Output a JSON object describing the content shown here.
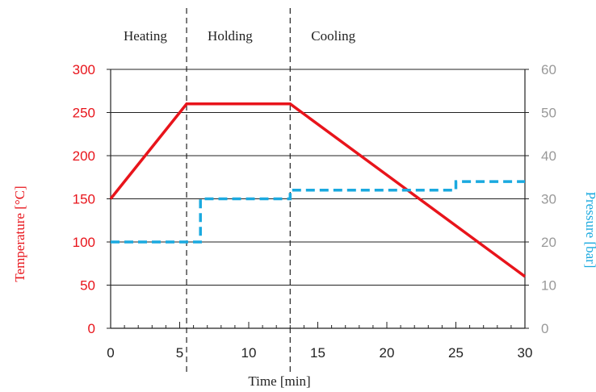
{
  "chart_data": {
    "type": "line",
    "xlabel": "Time [min]",
    "ylabel_left": "Temperature [°C]",
    "ylabel_right": "Pressure [bar]",
    "xlim": [
      0,
      30
    ],
    "ylim_left": [
      0,
      300
    ],
    "ylim_right": [
      0,
      60
    ],
    "x_ticks": [
      "0",
      "5",
      "10",
      "15",
      "20",
      "25",
      "30"
    ],
    "y_left_ticks": [
      "0",
      "50",
      "100",
      "150",
      "200",
      "250",
      "300"
    ],
    "y_right_ticks": [
      "0",
      "10",
      "20",
      "30",
      "40",
      "50",
      "60"
    ],
    "phases": [
      {
        "label": "Heating",
        "start": 0,
        "end": 5.5
      },
      {
        "label": "Holding",
        "start": 5.5,
        "end": 13
      },
      {
        "label": "Cooling",
        "start": 13,
        "end": 30
      }
    ],
    "series": [
      {
        "axis": "left",
        "style": "solid",
        "color": "#e8141b",
        "points": [
          [
            0,
            150
          ],
          [
            5.5,
            260
          ],
          [
            13,
            260
          ],
          [
            30,
            60
          ]
        ]
      },
      {
        "axis": "right",
        "style": "dashed",
        "color": "#1aa9df",
        "points": [
          [
            0,
            20
          ],
          [
            6.5,
            20
          ],
          [
            6.5,
            30
          ],
          [
            13,
            30
          ],
          [
            13,
            32
          ],
          [
            25,
            32
          ],
          [
            25,
            34
          ],
          [
            30,
            34
          ]
        ]
      }
    ],
    "grid": true
  }
}
